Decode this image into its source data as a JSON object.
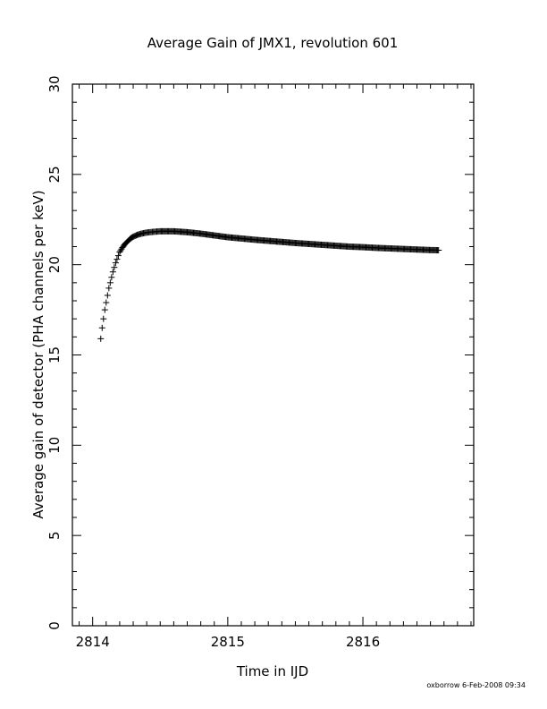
{
  "chart_data": {
    "type": "scatter",
    "title": "Average Gain of JMX1, revolution 601",
    "xlabel": "Time in IJD",
    "ylabel": "Average gain of detector (PHA channels per keV)",
    "xlim": [
      2813.85,
      2816.82
    ],
    "ylim": [
      0,
      30
    ],
    "x_ticks": [
      "2814",
      "2815",
      "2816"
    ],
    "y_ticks": [
      "0",
      "5",
      "10",
      "15",
      "20",
      "25",
      "30"
    ],
    "grid": false,
    "marker": "plus",
    "series": [
      {
        "points": [
          [
            2814.06,
            15.9
          ],
          [
            2814.07,
            16.5
          ],
          [
            2814.08,
            17.0
          ],
          [
            2814.09,
            17.5
          ],
          [
            2814.1,
            17.9
          ],
          [
            2814.11,
            18.3
          ],
          [
            2814.12,
            18.7
          ],
          [
            2814.13,
            19.0
          ],
          [
            2814.14,
            19.3
          ],
          [
            2814.15,
            19.6
          ],
          [
            2814.16,
            19.85
          ],
          [
            2814.17,
            20.1
          ],
          [
            2814.18,
            20.3
          ],
          [
            2814.19,
            20.5
          ],
          [
            2814.2,
            20.7
          ],
          [
            2814.22,
            20.95
          ],
          [
            2814.24,
            21.15
          ],
          [
            2814.26,
            21.3
          ],
          [
            2814.28,
            21.45
          ],
          [
            2814.3,
            21.55
          ],
          [
            2814.33,
            21.65
          ],
          [
            2814.36,
            21.72
          ],
          [
            2814.4,
            21.78
          ],
          [
            2814.45,
            21.82
          ],
          [
            2814.5,
            21.85
          ],
          [
            2814.6,
            21.85
          ],
          [
            2814.7,
            21.8
          ],
          [
            2814.8,
            21.72
          ],
          [
            2814.9,
            21.62
          ],
          [
            2815.0,
            21.52
          ],
          [
            2815.1,
            21.45
          ],
          [
            2815.2,
            21.38
          ],
          [
            2815.3,
            21.32
          ],
          [
            2815.4,
            21.26
          ],
          [
            2815.5,
            21.2
          ],
          [
            2815.6,
            21.15
          ],
          [
            2815.7,
            21.1
          ],
          [
            2815.8,
            21.05
          ],
          [
            2815.9,
            21.0
          ],
          [
            2816.0,
            20.97
          ],
          [
            2816.1,
            20.93
          ],
          [
            2816.2,
            20.9
          ],
          [
            2816.3,
            20.87
          ],
          [
            2816.4,
            20.84
          ],
          [
            2816.5,
            20.81
          ],
          [
            2816.56,
            20.8
          ]
        ]
      }
    ]
  },
  "footer": {
    "stamp": "oxborrow  6-Feb-2008 09:34"
  }
}
